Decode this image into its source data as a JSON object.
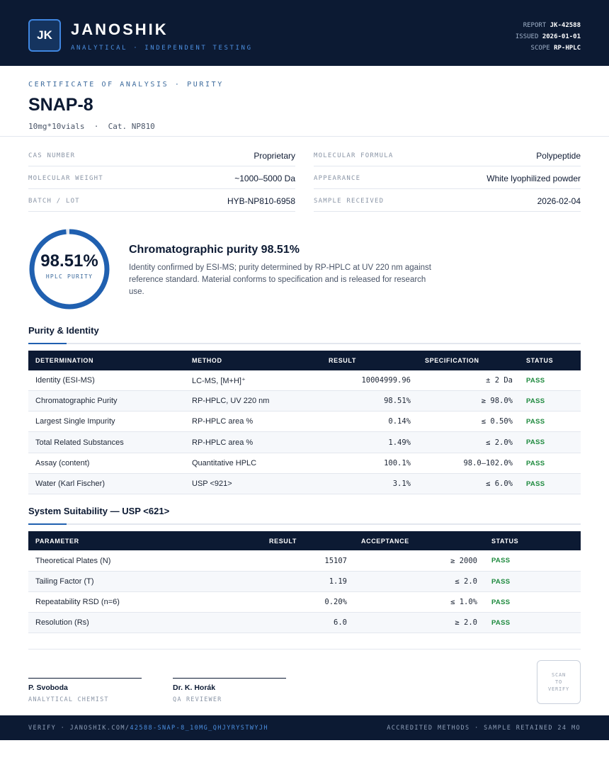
{
  "header": {
    "logo_initials": "JK",
    "brand": "JANOSHIK",
    "brand_sub": "ANALYTICAL · INDEPENDENT TESTING",
    "meta": [
      {
        "label": "REPORT",
        "value": "JK-42588"
      },
      {
        "label": "ISSUED",
        "value": "2026-01-01"
      },
      {
        "label": "SCOPE",
        "value": "RP-HPLC"
      }
    ]
  },
  "certificate": {
    "label": "CERTIFICATE OF ANALYSIS · PURITY",
    "product": "SNAP-8",
    "product_sub": "10mg*10vials  ·  Cat. NP810"
  },
  "info": [
    {
      "label": "CAS NUMBER",
      "value": "Proprietary"
    },
    {
      "label": "MOLECULAR FORMULA",
      "value": "Polypeptide"
    },
    {
      "label": "MOLECULAR WEIGHT",
      "value": "~1000–5000 Da"
    },
    {
      "label": "APPEARANCE",
      "value": "White lyophilized powder"
    },
    {
      "label": "BATCH / LOT",
      "value": "HYB-NP810-6958"
    },
    {
      "label": "SAMPLE RECEIVED",
      "value": "2026-02-04"
    }
  ],
  "purity": {
    "value_text": "98.51%",
    "fraction": 0.9851,
    "label": "HPLC PURITY",
    "title": "Chromatographic purity 98.51%",
    "text": "Identity confirmed by ESI-MS; purity determined by RP-HPLC at UV 220 nm against reference standard. Material conforms to specification and is released for research use."
  },
  "purity_identity": {
    "title": "Purity & Identity",
    "headers": [
      "DETERMINATION",
      "METHOD",
      "RESULT",
      "SPECIFICATION",
      "STATUS"
    ],
    "rows": [
      {
        "determination": "Identity (ESI-MS)",
        "method": "LC-MS, [M+H]⁺",
        "result": "10004999.96",
        "spec": "± 2 Da",
        "status": "PASS"
      },
      {
        "determination": "Chromatographic Purity",
        "method": "RP-HPLC, UV 220 nm",
        "result": "98.51%",
        "spec": "≥ 98.0%",
        "status": "PASS"
      },
      {
        "determination": "Largest Single Impurity",
        "method": "RP-HPLC area %",
        "result": "0.14%",
        "spec": "≤ 0.50%",
        "status": "PASS"
      },
      {
        "determination": "Total Related Substances",
        "method": "RP-HPLC area %",
        "result": "1.49%",
        "spec": "≤ 2.0%",
        "status": "PASS"
      },
      {
        "determination": "Assay (content)",
        "method": "Quantitative HPLC",
        "result": "100.1%",
        "spec": "98.0–102.0%",
        "status": "PASS"
      },
      {
        "determination": "Water (Karl Fischer)",
        "method": "USP <921>",
        "result": "3.1%",
        "spec": "≤ 6.0%",
        "status": "PASS"
      }
    ]
  },
  "system_suitability": {
    "title": "System Suitability — USP <621>",
    "headers": [
      "PARAMETER",
      "RESULT",
      "ACCEPTANCE",
      "STATUS"
    ],
    "rows": [
      {
        "parameter": "Theoretical Plates (N)",
        "result": "15107",
        "acceptance": "≥ 2000",
        "status": "PASS"
      },
      {
        "parameter": "Tailing Factor (T)",
        "result": "1.19",
        "acceptance": "≤ 2.0",
        "status": "PASS"
      },
      {
        "parameter": "Repeatability RSD (n=6)",
        "result": "0.20%",
        "acceptance": "≤ 1.0%",
        "status": "PASS"
      },
      {
        "parameter": "Resolution (Rs)",
        "result": "6.0",
        "acceptance": "≥ 2.0",
        "status": "PASS"
      }
    ]
  },
  "signatures": [
    {
      "name": "P. Svoboda",
      "role": "ANALYTICAL CHEMIST"
    },
    {
      "name": "Dr. K. Horák",
      "role": "QA REVIEWER"
    }
  ],
  "qr": {
    "line1": "SCAN",
    "line2": "TO",
    "line3": "VERIFY"
  },
  "footer": {
    "verify_prefix": "VERIFY · JANOSHIK.COM/",
    "verify_link": "42588-SNAP-8_10MG_QHJYRYSTWYJH",
    "accredit": "ACCREDITED METHODS · SAMPLE RETAINED 24 MO"
  },
  "colors": {
    "navy": "#0c1a33",
    "accent": "#2060b0",
    "pass": "#1e8a3e"
  }
}
